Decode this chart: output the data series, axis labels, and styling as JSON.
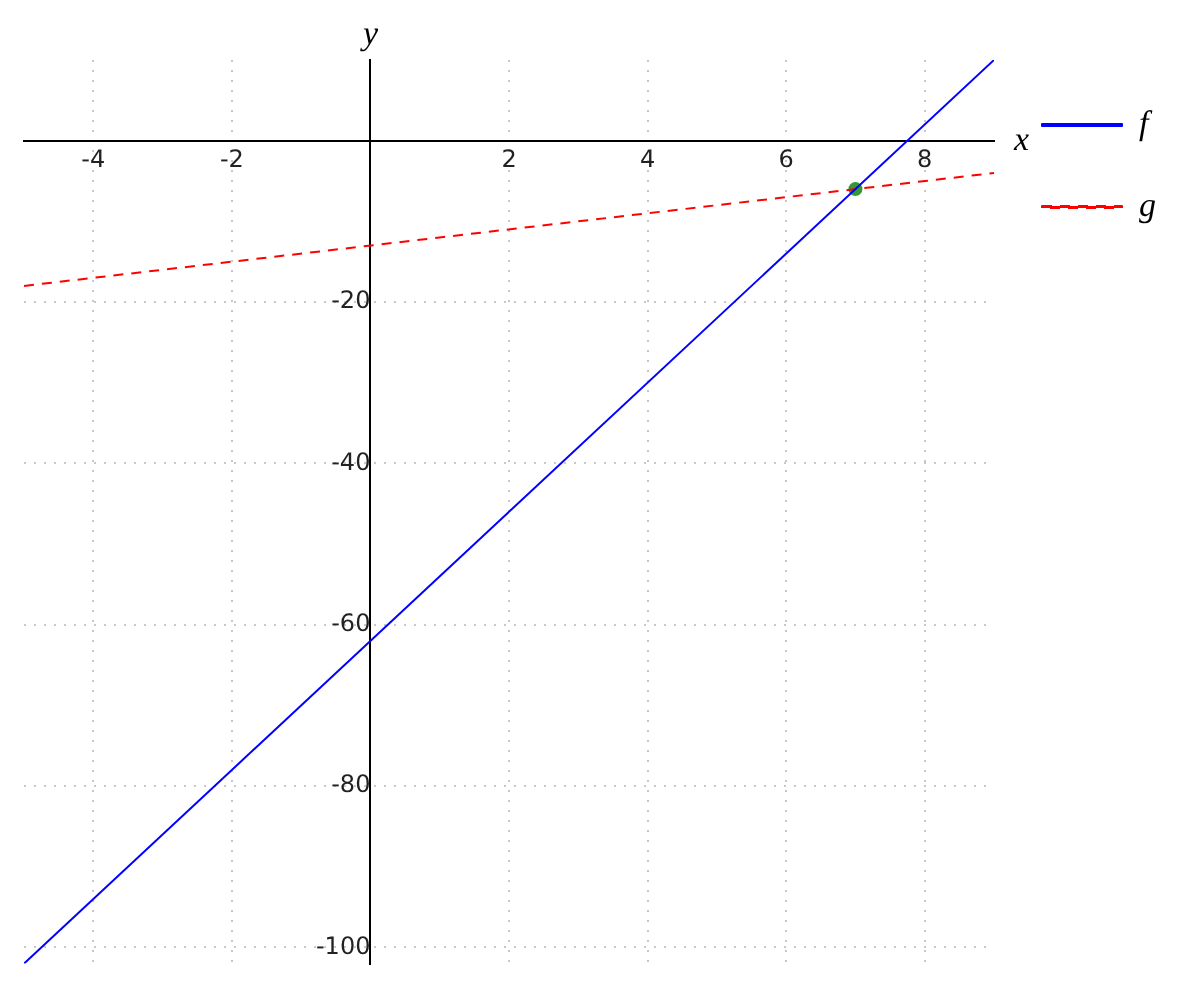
{
  "chart_data": {
    "type": "line",
    "xlabel": "x",
    "ylabel": "y",
    "xlim": [
      -5,
      9
    ],
    "ylim": [
      -102,
      10
    ],
    "xticks": [
      -4,
      -2,
      2,
      4,
      6,
      8
    ],
    "yticks": [
      -20,
      -40,
      -60,
      -80,
      -100
    ],
    "grid": true,
    "legend": "top right",
    "marker": "none",
    "series": [
      {
        "name": "f",
        "color": "#0000ff",
        "x": [
          -5,
          9
        ],
        "values": [
          -102,
          10
        ],
        "line_style": "solid"
      },
      {
        "name": "g",
        "color": "#ff0000",
        "x": [
          -5,
          9
        ],
        "values": [
          -18,
          -4
        ],
        "line_style": "dashed"
      },
      {
        "type": "scatter",
        "color": "#339933",
        "x": [
          7
        ],
        "values": [
          -6
        ],
        "marker": "circle"
      }
    ]
  }
}
